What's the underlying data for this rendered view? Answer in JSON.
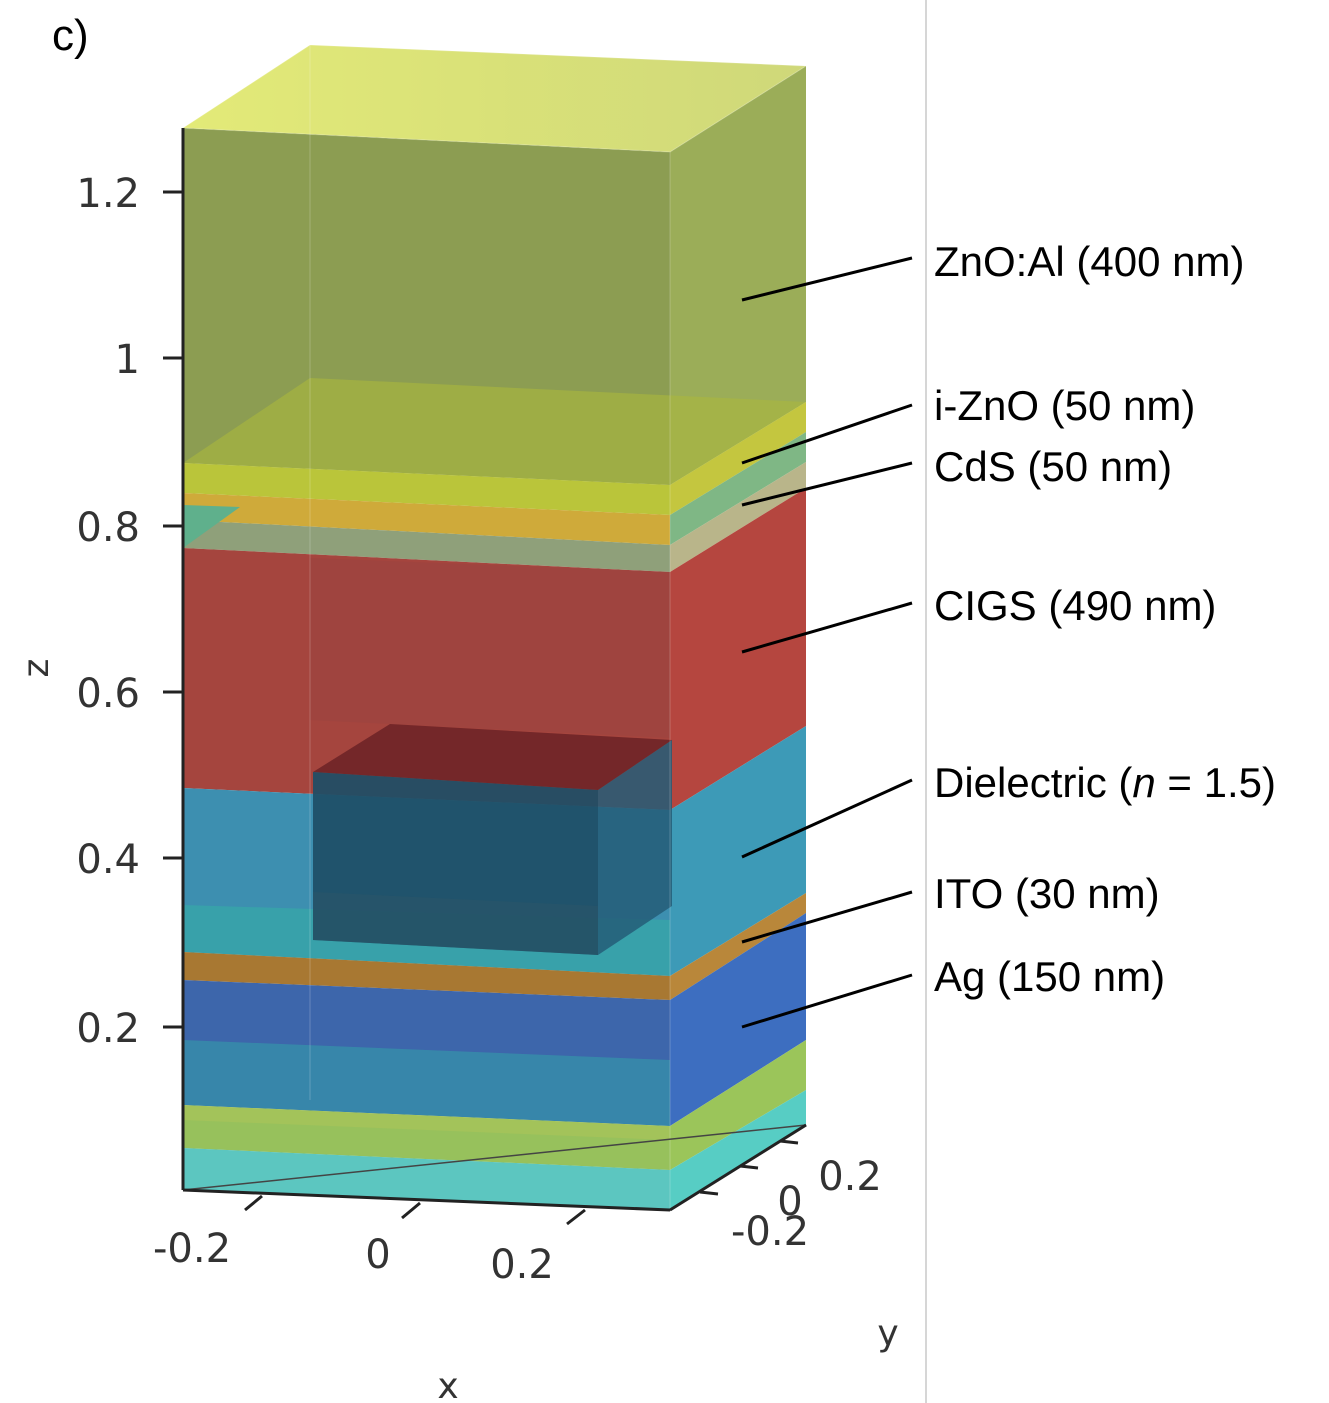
{
  "panel_label": "c)",
  "axes": {
    "x_label": "x",
    "y_label": "y",
    "z_label": "z",
    "z_ticks": [
      "0.2",
      "0.4",
      "0.6",
      "0.8",
      "1",
      "1.2"
    ],
    "x_ticks": [
      "-0.2",
      "0",
      "0.2"
    ],
    "y_ticks": [
      "-0.2",
      "0",
      "0.2"
    ]
  },
  "layers": [
    {
      "label": "ZnO:Al (400 nm)",
      "color": "#8fa24e"
    },
    {
      "label": "i-ZnO (50 nm)",
      "color": "#bccb3a"
    },
    {
      "label": "CdS (50 nm)",
      "color": "#d2b13c"
    },
    {
      "label": "CIGS (490 nm)",
      "color": "#a9443d"
    },
    {
      "label": "Dielectric (n = 1.5)",
      "label_prefix": "Dielectric (",
      "label_italic": "n",
      "label_suffix": " = 1.5)",
      "color": "#3e93b3"
    },
    {
      "label": "ITO (30 nm)",
      "color": "#b07a35"
    },
    {
      "label": "Ag (150 nm)",
      "color": "#3d68ad"
    }
  ]
}
